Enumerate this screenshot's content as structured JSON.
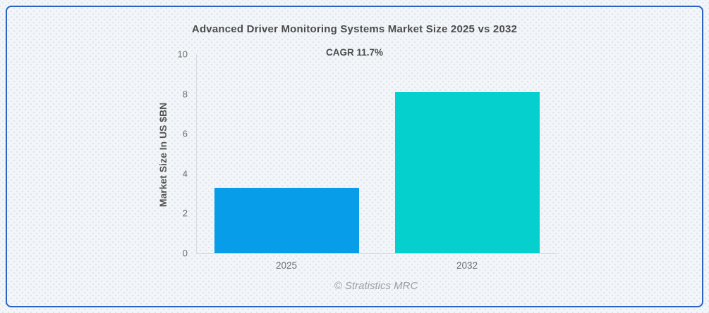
{
  "page": {
    "border_color": "#2b63c5",
    "background_color": "#f3f6f9",
    "footer": "© Stratistics MRC"
  },
  "chart_data": {
    "type": "bar",
    "title": "Advanced Driver Monitoring Systems Market Size 2025 vs 2032",
    "subtitle": "CAGR 11.7%",
    "categories": [
      "2025",
      "2032"
    ],
    "values": [
      3.3,
      8.1
    ],
    "bar_colors": [
      "#089de8",
      "#05d0ce"
    ],
    "xlabel": "",
    "ylabel": "Market Size In US $BN",
    "ylim": [
      0,
      10
    ],
    "yticks": [
      0,
      2,
      4,
      6,
      8,
      10
    ],
    "grid": false,
    "legend": "none",
    "axis_color": "#d9dce1",
    "tick_label_color": "#6f6f6f"
  }
}
